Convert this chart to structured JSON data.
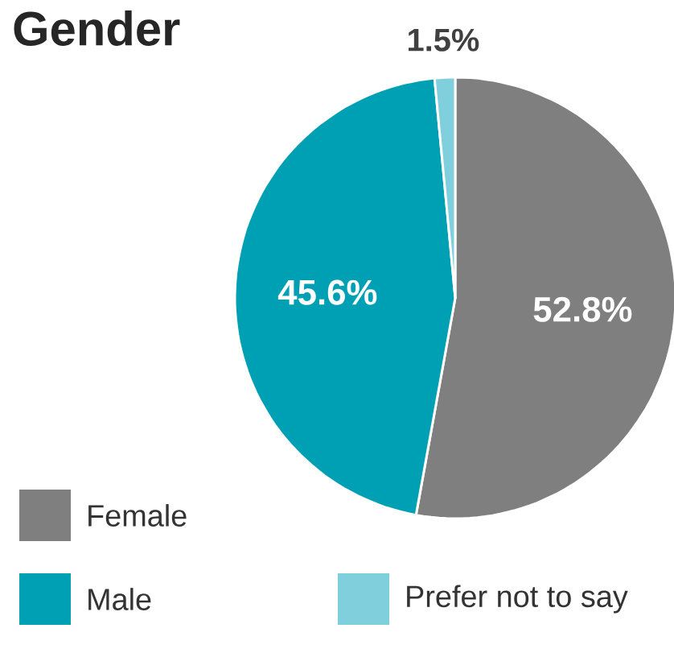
{
  "chart_data": {
    "type": "pie",
    "title": "Gender",
    "categories": [
      "Female",
      "Male",
      "Prefer not to say"
    ],
    "values": [
      52.8,
      45.6,
      1.5
    ],
    "colors": [
      "#7f7f7f",
      "#00a0b4",
      "#7fcfdc"
    ],
    "value_labels": [
      "52.8%",
      "45.6%",
      "1.5%"
    ],
    "legend": "bottom"
  }
}
